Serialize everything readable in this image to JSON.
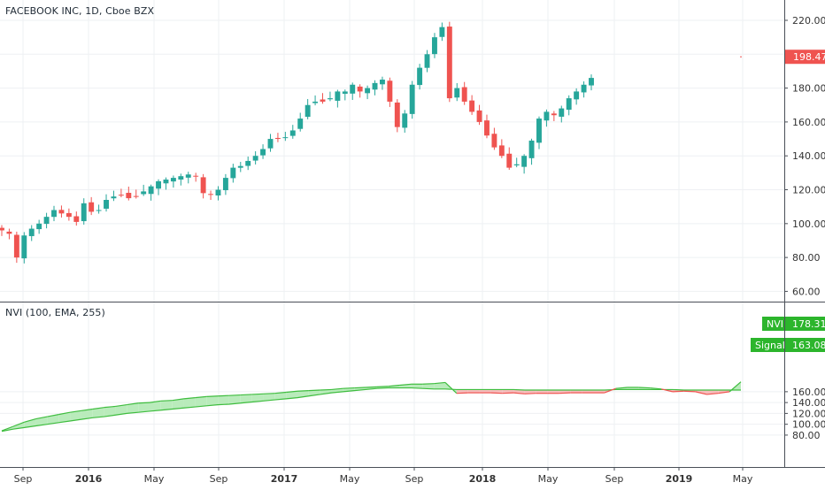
{
  "main": {
    "title": "FACEBOOK INC, 1D, Cboe BZX",
    "price_badge": "198.47",
    "price_badge_color": "#ef5350"
  },
  "indicator": {
    "title": "NVI (100, EMA, 255)",
    "nvi_label": "NVI",
    "nvi_value": "178.31",
    "signal_label": "Signal",
    "signal_value": "163.08",
    "badge_color": "#2cb52c"
  },
  "colors": {
    "up": "#26a69a",
    "down": "#ef5350",
    "nvi_line": "#3fbd3f",
    "fill_above": "#b9ebbb",
    "fill_below": "#f6bcbc",
    "grid": "#eef0f3"
  },
  "chart_data": [
    {
      "type": "candlestick",
      "title": "FACEBOOK INC, 1D, Cboe BZX",
      "x_ticks": [
        "Sep",
        "2016",
        "May",
        "Sep",
        "2017",
        "May",
        "Sep",
        "2018",
        "May",
        "Sep",
        "2019",
        "May"
      ],
      "y_ticks": [
        60.0,
        80.0,
        100.0,
        120.0,
        140.0,
        160.0,
        180.0,
        200.0,
        220.0
      ],
      "ylim": [
        55,
        232
      ],
      "last_price": 198.47,
      "series": [
        {
          "values": [
            [
              0,
              96
            ],
            [
              1,
              94
            ],
            [
              2,
              80
            ],
            [
              3,
              93
            ],
            [
              4,
              97
            ],
            [
              5,
              100
            ],
            [
              6,
              104
            ],
            [
              7,
              108
            ],
            [
              8,
              106
            ],
            [
              9,
              104
            ],
            [
              10,
              101
            ],
            [
              11,
              112
            ],
            [
              12,
              107
            ],
            [
              13,
              108
            ],
            [
              14,
              114
            ],
            [
              15,
              116
            ],
            [
              16,
              117
            ],
            [
              17,
              115
            ],
            [
              18,
              116
            ],
            [
              19,
              119
            ],
            [
              20,
              122
            ],
            [
              21,
              125
            ],
            [
              22,
              126
            ],
            [
              23,
              127
            ],
            [
              24,
              128
            ],
            [
              25,
              129
            ],
            [
              26,
              128
            ],
            [
              27,
              118
            ],
            [
              28,
              117
            ],
            [
              29,
              120
            ],
            [
              30,
              127
            ],
            [
              31,
              133
            ],
            [
              32,
              134
            ],
            [
              33,
              137
            ],
            [
              34,
              140
            ],
            [
              35,
              144
            ],
            [
              36,
              150
            ],
            [
              37,
              150
            ],
            [
              38,
              151
            ],
            [
              39,
              155
            ],
            [
              40,
              162
            ],
            [
              41,
              170
            ],
            [
              42,
              172
            ],
            [
              43,
              172
            ],
            [
              44,
              174
            ],
            [
              45,
              178
            ],
            [
              46,
              178
            ],
            [
              47,
              182
            ],
            [
              48,
              178
            ],
            [
              49,
              180
            ],
            [
              50,
              183
            ],
            [
              51,
              185
            ],
            [
              52,
              172
            ],
            [
              53,
              157
            ],
            [
              54,
              165
            ],
            [
              55,
              182
            ],
            [
              56,
              192
            ],
            [
              57,
              200
            ],
            [
              58,
              210
            ],
            [
              59,
              216
            ],
            [
              60,
              174
            ],
            [
              61,
              180
            ],
            [
              62,
              172
            ],
            [
              63,
              166
            ],
            [
              64,
              160
            ],
            [
              65,
              152
            ],
            [
              66,
              145
            ],
            [
              67,
              140
            ],
            [
              68,
              133
            ],
            [
              69,
              135
            ],
            [
              70,
              140
            ],
            [
              71,
              149
            ],
            [
              72,
              162
            ],
            [
              73,
              166
            ],
            [
              74,
              164
            ],
            [
              75,
              168
            ],
            [
              76,
              174
            ],
            [
              77,
              178
            ],
            [
              78,
              182
            ],
            [
              79,
              186
            ]
          ]
        }
      ]
    },
    {
      "type": "area",
      "title": "NVI (100, EMA, 255)",
      "x_ticks": [
        "Sep",
        "2016",
        "May",
        "Sep",
        "2017",
        "May",
        "Sep",
        "2018",
        "May",
        "Sep",
        "2019",
        "May"
      ],
      "y_ticks": [
        80.0,
        100.0,
        120.0,
        140.0,
        160.0
      ],
      "ylim": [
        74,
        186
      ],
      "series": [
        {
          "name": "NVI",
          "values": [
            [
              0,
              88
            ],
            [
              1,
              96
            ],
            [
              2,
              104
            ],
            [
              3,
              110
            ],
            [
              4,
              114
            ],
            [
              5,
              118
            ],
            [
              6,
              122
            ],
            [
              7,
              125
            ],
            [
              8,
              128
            ],
            [
              9,
              131
            ],
            [
              10,
              133
            ],
            [
              11,
              136
            ],
            [
              12,
              139
            ],
            [
              13,
              140
            ],
            [
              14,
              143
            ],
            [
              15,
              144
            ],
            [
              16,
              147
            ],
            [
              17,
              149
            ],
            [
              18,
              151
            ],
            [
              19,
              152
            ],
            [
              20,
              153
            ],
            [
              21,
              154
            ],
            [
              22,
              155
            ],
            [
              23,
              156
            ],
            [
              24,
              157
            ],
            [
              25,
              159
            ],
            [
              26,
              161
            ],
            [
              27,
              162
            ],
            [
              28,
              163
            ],
            [
              29,
              164
            ],
            [
              30,
              166
            ],
            [
              31,
              167
            ],
            [
              32,
              168
            ],
            [
              33,
              169
            ],
            [
              34,
              170
            ],
            [
              35,
              172
            ],
            [
              36,
              174
            ],
            [
              37,
              174
            ],
            [
              38,
              175
            ],
            [
              39,
              177
            ],
            [
              40,
              157
            ],
            [
              41,
              158
            ],
            [
              42,
              158
            ],
            [
              43,
              158
            ],
            [
              44,
              157
            ],
            [
              45,
              158
            ],
            [
              46,
              156
            ],
            [
              47,
              157
            ],
            [
              48,
              157
            ],
            [
              49,
              157
            ],
            [
              50,
              158
            ],
            [
              51,
              158
            ],
            [
              52,
              158
            ],
            [
              53,
              158
            ],
            [
              54,
              166
            ],
            [
              55,
              168
            ],
            [
              56,
              168
            ],
            [
              57,
              167
            ],
            [
              58,
              165
            ],
            [
              59,
              160
            ],
            [
              60,
              161
            ],
            [
              61,
              160
            ],
            [
              62,
              155
            ],
            [
              63,
              157
            ],
            [
              64,
              160
            ],
            [
              65,
              178.31
            ]
          ]
        },
        {
          "name": "Signal",
          "values": [
            [
              0,
              87
            ],
            [
              1,
              91
            ],
            [
              2,
              94
            ],
            [
              3,
              97
            ],
            [
              4,
              100
            ],
            [
              5,
              103
            ],
            [
              6,
              106
            ],
            [
              7,
              109
            ],
            [
              8,
              112
            ],
            [
              9,
              114
            ],
            [
              10,
              117
            ],
            [
              11,
              120
            ],
            [
              12,
              122
            ],
            [
              13,
              124
            ],
            [
              14,
              126
            ],
            [
              15,
              128
            ],
            [
              16,
              130
            ],
            [
              17,
              132
            ],
            [
              18,
              134
            ],
            [
              19,
              136
            ],
            [
              20,
              137
            ],
            [
              21,
              139
            ],
            [
              22,
              141
            ],
            [
              23,
              143
            ],
            [
              24,
              145
            ],
            [
              25,
              147
            ],
            [
              26,
              149
            ],
            [
              27,
              152
            ],
            [
              28,
              155
            ],
            [
              29,
              158
            ],
            [
              30,
              160
            ],
            [
              31,
              162
            ],
            [
              32,
              164
            ],
            [
              33,
              166
            ],
            [
              34,
              167
            ],
            [
              35,
              167
            ],
            [
              36,
              167
            ],
            [
              37,
              166
            ],
            [
              38,
              165
            ],
            [
              39,
              165
            ],
            [
              40,
              164
            ],
            [
              41,
              164
            ],
            [
              42,
              164
            ],
            [
              43,
              164
            ],
            [
              44,
              164
            ],
            [
              45,
              164
            ],
            [
              46,
              163
            ],
            [
              47,
              163
            ],
            [
              48,
              163
            ],
            [
              49,
              163
            ],
            [
              50,
              163
            ],
            [
              51,
              163
            ],
            [
              52,
              163
            ],
            [
              53,
              163
            ],
            [
              54,
              164
            ],
            [
              55,
              164
            ],
            [
              56,
              164
            ],
            [
              57,
              164
            ],
            [
              58,
              164
            ],
            [
              59,
              164
            ],
            [
              60,
              163
            ],
            [
              61,
              163
            ],
            [
              62,
              163
            ],
            [
              63,
              163
            ],
            [
              64,
              163
            ],
            [
              65,
              163.08
            ]
          ]
        }
      ]
    }
  ]
}
